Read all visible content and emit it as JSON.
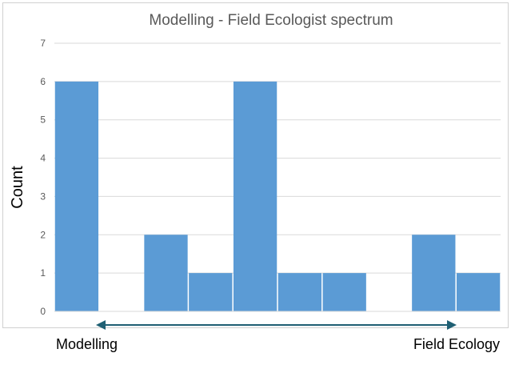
{
  "chart_data": {
    "type": "bar",
    "title": "Modelling - Field Ecologist spectrum",
    "ylabel": "Count",
    "xlabel": "",
    "ylim": [
      0,
      7
    ],
    "yticks": [
      "0",
      "1",
      "2",
      "3",
      "4",
      "5",
      "6",
      "7"
    ],
    "values": [
      6,
      0,
      2,
      1,
      6,
      1,
      1,
      0,
      2,
      1
    ],
    "grid": true,
    "legend": "none",
    "bar_color": "#5b9bd5",
    "grid_color": "#d9d9d9",
    "axis_text_color": "#595959",
    "arrow_color": "#1f5f73",
    "spectrum": {
      "left_label": "Modelling",
      "right_label": "Field Ecology"
    }
  }
}
